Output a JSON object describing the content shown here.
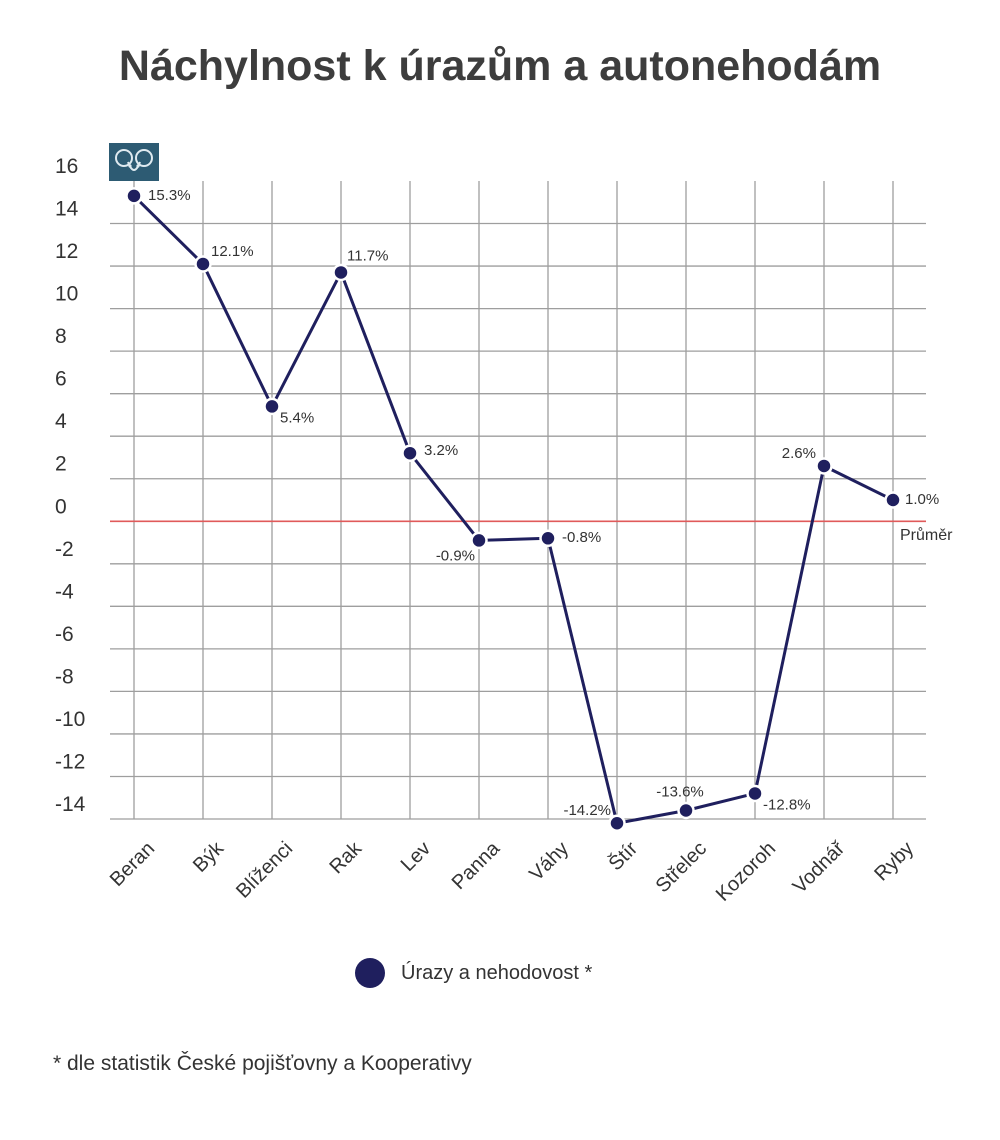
{
  "title": "Náchylnost k úrazům a autonehodám",
  "legend": {
    "label": "Úrazy a nehodovost *"
  },
  "footnote": "* dle statistik České pojišťovny a Kooperativy",
  "colors": {
    "series": "#1f1f5e",
    "average_line": "#e05a5a",
    "grid": "#9e9e9e",
    "text": "#333333"
  },
  "chart_data": {
    "type": "line",
    "title": "Náchylnost k úrazům a autonehodám",
    "categories": [
      "Beran",
      "Býk",
      "Blíženci",
      "Rak",
      "Lev",
      "Panna",
      "Váhy",
      "Štír",
      "Střelec",
      "Kozoroh",
      "Vodnář",
      "Ryby"
    ],
    "series": [
      {
        "name": "Úrazy a nehodovost *",
        "values": [
          15.3,
          12.1,
          5.4,
          11.7,
          3.2,
          -0.9,
          -0.8,
          -14.2,
          -13.6,
          -12.8,
          2.6,
          1.0
        ],
        "labels": [
          "15.3%",
          "12.1%",
          "5.4%",
          "11.7%",
          "3.2%",
          "-0.9%",
          "-0.8%",
          "-14.2%",
          "-13.6%",
          "-12.8%",
          "2.6%",
          "1.0%"
        ]
      }
    ],
    "yticks": [
      16,
      14,
      12,
      10,
      8,
      6,
      4,
      2,
      0,
      -2,
      -4,
      -6,
      -8,
      -10,
      -12,
      -14
    ],
    "ylim": [
      -14,
      16
    ],
    "reference_line": {
      "value": 0,
      "label": "Průměr"
    },
    "grid": true,
    "icon": "aries-ram-icon"
  }
}
